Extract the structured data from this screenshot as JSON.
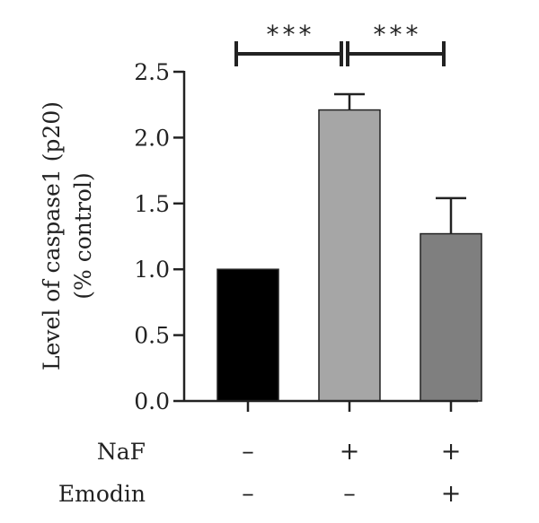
{
  "chart_data": {
    "type": "bar",
    "ylabel_line1": "Level of caspase1 (p20)",
    "ylabel_line2": "(% control)",
    "ylim": [
      0,
      2.5
    ],
    "yticks": [
      {
        "value": 0,
        "label": "0.0"
      },
      {
        "value": 0.5,
        "label": "0.5"
      },
      {
        "value": 1,
        "label": "1.0"
      },
      {
        "value": 1.5,
        "label": "1.5"
      },
      {
        "value": 2,
        "label": "2.0"
      },
      {
        "value": 2.5,
        "label": "2.5"
      }
    ],
    "bars": [
      {
        "value": 1.0,
        "error": 0.0,
        "color": "#000000"
      },
      {
        "value": 2.21,
        "error": 0.12,
        "color": "#a6a6a6"
      },
      {
        "value": 1.27,
        "error": 0.27,
        "color": "#7f7f7f"
      }
    ],
    "conditions": [
      {
        "label": "NaF",
        "values": [
          "–",
          "+",
          "+"
        ]
      },
      {
        "label": "Emodin",
        "values": [
          "–",
          "–",
          "+"
        ]
      }
    ],
    "significance": [
      {
        "from": 0,
        "to": 1,
        "label": "***"
      },
      {
        "from": 1,
        "to": 2,
        "label": "***"
      }
    ]
  }
}
